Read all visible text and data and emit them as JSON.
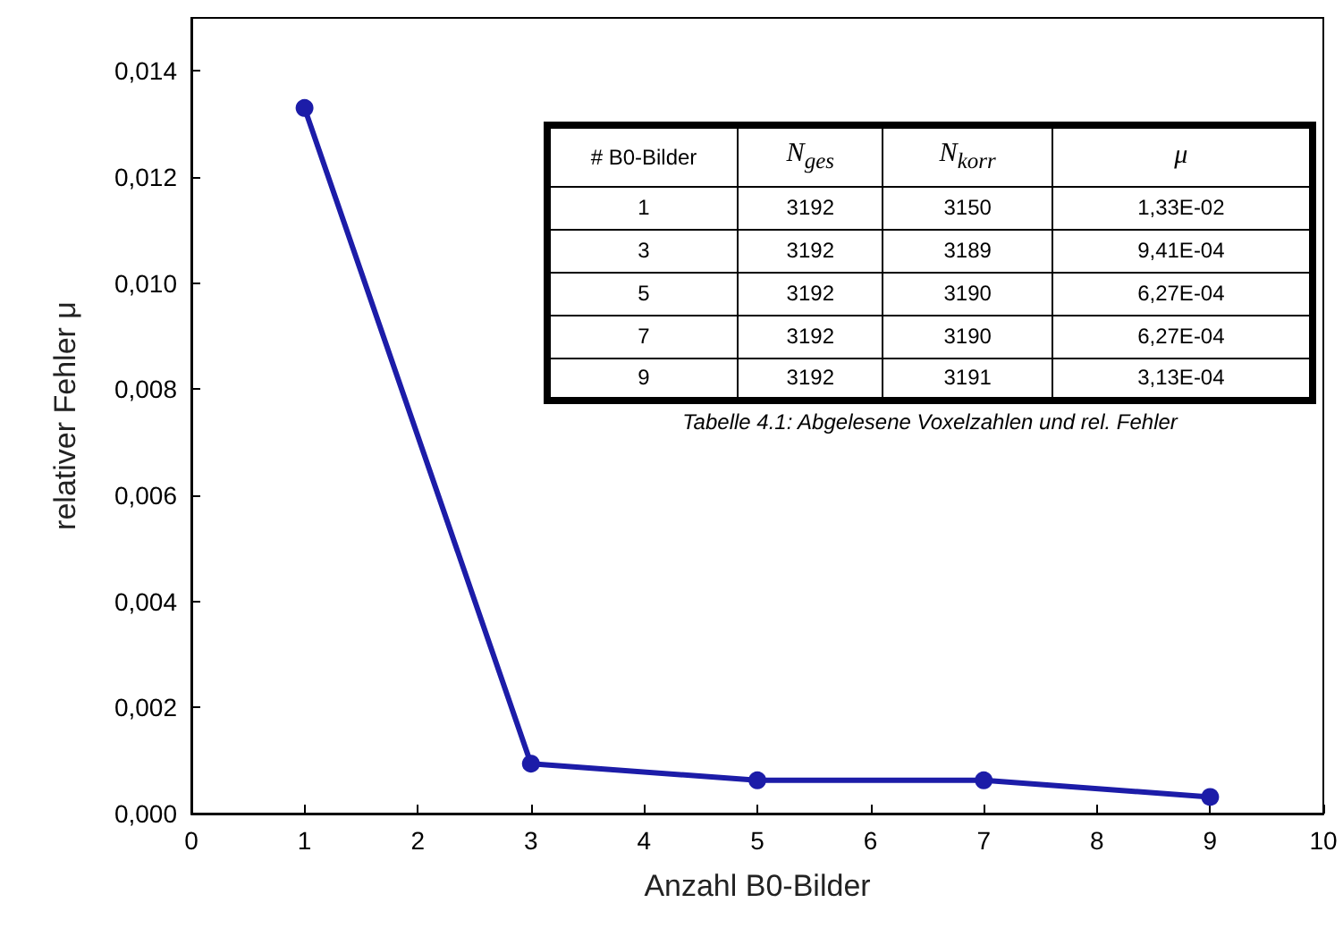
{
  "chart_data": {
    "type": "line",
    "xlabel": "Anzahl B0-Bilder",
    "ylabel": "relativer Fehler μ",
    "x": [
      1,
      3,
      5,
      7,
      9
    ],
    "series": [
      {
        "color": "#1c1ca8",
        "values": [
          0.0133,
          0.000941,
          0.000627,
          0.000627,
          0.000313
        ]
      }
    ],
    "xlim": [
      0,
      10
    ],
    "xticks": [
      0,
      1,
      2,
      3,
      4,
      5,
      6,
      7,
      8,
      9,
      10
    ],
    "ylim": [
      0,
      0.015
    ],
    "yticks": [
      {
        "value": 0,
        "label": "0,000"
      },
      {
        "value": 0.002,
        "label": "0,002"
      },
      {
        "value": 0.004,
        "label": "0,004"
      },
      {
        "value": 0.006,
        "label": "0,006"
      },
      {
        "value": 0.008,
        "label": "0,008"
      },
      {
        "value": 0.01,
        "label": "0,010"
      },
      {
        "value": 0.012,
        "label": "0,012"
      },
      {
        "value": 0.014,
        "label": "0,014"
      }
    ],
    "grid": false,
    "marker": "circle",
    "line_style": "solid",
    "annotations": [
      "# B0-Bilder",
      "N$_{ges}$",
      "N$_{korr}$",
      "μ",
      "1",
      "3192",
      "3150",
      "1,33E-02",
      "3",
      "3192",
      "3189",
      "9,41E-04",
      "5",
      "3192",
      "3190",
      "6,27E-04",
      "7",
      "3192",
      "3190",
      "6,27E-04",
      "9",
      "3192",
      "3191",
      "3,13E-04",
      "Tabelle 4.1: Abgelesene Voxelzahlen und rel. Fehler"
    ]
  }
}
